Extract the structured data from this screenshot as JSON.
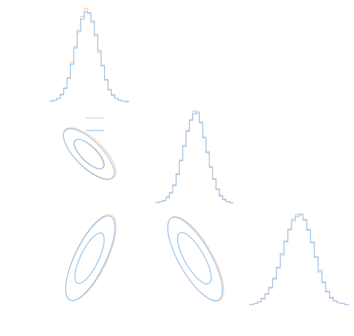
{
  "chart_data": {
    "type": "corner",
    "series": [
      {
        "color": "#f7c9a3",
        "histograms": [
          [
            1,
            2,
            4,
            9,
            16,
            26,
            44,
            62,
            80,
            95,
            104,
            98,
            88,
            73,
            55,
            41,
            24,
            13,
            7,
            4,
            2,
            1,
            0
          ],
          [
            1,
            2,
            3,
            6,
            11,
            19,
            31,
            47,
            63,
            79,
            91,
            100,
            97,
            87,
            72,
            56,
            40,
            27,
            16,
            9,
            5,
            2,
            1
          ],
          [
            1,
            2,
            4,
            7,
            12,
            19,
            29,
            41,
            55,
            70,
            83,
            93,
            100,
            101,
            95,
            84,
            70,
            54,
            39,
            26,
            16,
            9,
            5,
            3,
            2,
            1
          ]
        ]
      },
      {
        "color": "#90c2ef",
        "histograms": [
          [
            1,
            2,
            4,
            8,
            15,
            27,
            42,
            60,
            78,
            92,
            100,
            99,
            90,
            75,
            57,
            40,
            25,
            14,
            8,
            4,
            2,
            1,
            1
          ],
          [
            1,
            2,
            3,
            7,
            12,
            20,
            32,
            46,
            62,
            78,
            90,
            97,
            99,
            88,
            71,
            55,
            39,
            26,
            15,
            8,
            4,
            2,
            1
          ],
          [
            1,
            2,
            4,
            8,
            13,
            20,
            30,
            42,
            57,
            71,
            84,
            95,
            98,
            100,
            94,
            83,
            69,
            53,
            37,
            25,
            15,
            8,
            5,
            3,
            2,
            1
          ]
        ]
      }
    ]
  }
}
